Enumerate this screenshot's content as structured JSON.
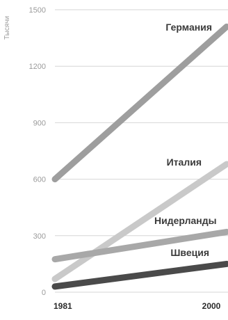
{
  "chart_data": {
    "type": "line",
    "ylabel": "Тысячи",
    "xlabel": "",
    "x": [
      1981,
      2000
    ],
    "x_tick_labels": [
      "1981",
      "2000"
    ],
    "ylim": [
      0,
      1500
    ],
    "y_ticks": [
      0,
      300,
      600,
      900,
      1200,
      1500
    ],
    "grid": "horizontal",
    "legend": "inline labels",
    "series": [
      {
        "name": "Германия",
        "values": [
          600,
          1410
        ],
        "color": "#9e9e9e"
      },
      {
        "name": "Италия",
        "values": [
          70,
          680
        ],
        "color": "#c9c9c9"
      },
      {
        "name": "Нидерланды",
        "values": [
          175,
          320
        ],
        "color": "#a8a8a8"
      },
      {
        "name": "Швеция",
        "values": [
          30,
          150
        ],
        "color": "#4a4a4a"
      }
    ]
  },
  "colors": {
    "grid": "#d6d6d6",
    "tick_text": "#9a9a9a",
    "label_text": "#3a3a3a"
  }
}
